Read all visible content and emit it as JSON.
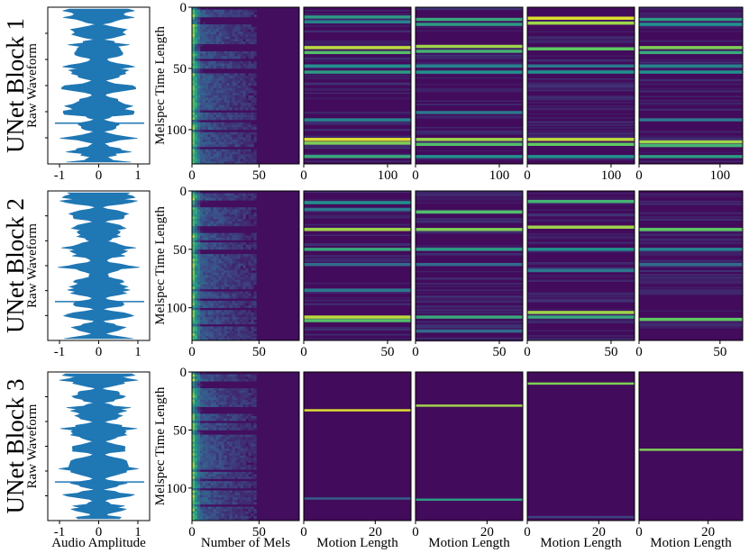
{
  "colors": {
    "waveform": "#1f77b4",
    "viridis_low": "#440154",
    "viridis_mid": "#21918c",
    "viridis_high": "#fde725",
    "axis": "#000000"
  },
  "chart_data": [
    {
      "row": 0,
      "row_label": "UNet Block 1",
      "waveform": {
        "type": "area",
        "ylabel": "Raw Waveform",
        "xlabel": "",
        "xlim": [
          -1.3,
          1.3
        ],
        "xticks": [
          "-1",
          "0",
          "1"
        ],
        "tick_values": [
          -1,
          0,
          1
        ]
      },
      "melspec": {
        "type": "heatmap",
        "ylabel": "Melspec Time Length",
        "xlabel": "",
        "xlim": [
          0,
          80
        ],
        "ylim": [
          0,
          128
        ],
        "xticks": [
          "0",
          "50"
        ],
        "yticks": [
          "0",
          "50",
          "100"
        ],
        "xtick_values": [
          0,
          50
        ],
        "ytick_values": [
          0,
          50,
          100
        ]
      },
      "attention": [
        {
          "type": "heatmap",
          "xlabel": "",
          "xlim": [
            0,
            128
          ],
          "xticks": [
            "0",
            "100"
          ],
          "xtick_values": [
            0,
            100
          ],
          "bands": [
            [
              8,
              0.55
            ],
            [
              12,
              0.45
            ],
            [
              33,
              0.9
            ],
            [
              37,
              0.7
            ],
            [
              48,
              0.5
            ],
            [
              53,
              0.55
            ],
            [
              92,
              0.45
            ],
            [
              108,
              0.95
            ],
            [
              111,
              0.8
            ],
            [
              122,
              0.6
            ]
          ]
        },
        {
          "type": "heatmap",
          "xlabel": "",
          "xlim": [
            0,
            128
          ],
          "xticks": [
            "0",
            "100"
          ],
          "xtick_values": [
            0,
            100
          ],
          "bands": [
            [
              10,
              0.6
            ],
            [
              14,
              0.55
            ],
            [
              32,
              0.85
            ],
            [
              36,
              0.65
            ],
            [
              48,
              0.45
            ],
            [
              53,
              0.5
            ],
            [
              86,
              0.4
            ],
            [
              108,
              0.85
            ],
            [
              112,
              0.7
            ],
            [
              122,
              0.5
            ]
          ]
        },
        {
          "type": "heatmap",
          "xlabel": "",
          "xlim": [
            0,
            128
          ],
          "xticks": [
            "0",
            "100"
          ],
          "xtick_values": [
            0,
            100
          ],
          "bands": [
            [
              9,
              0.95
            ],
            [
              13,
              0.85
            ],
            [
              34,
              0.75
            ],
            [
              48,
              0.4
            ],
            [
              53,
              0.5
            ],
            [
              108,
              0.9
            ],
            [
              112,
              0.75
            ],
            [
              122,
              0.5
            ]
          ]
        },
        {
          "type": "heatmap",
          "xlabel": "",
          "xlim": [
            0,
            128
          ],
          "xticks": [
            "0",
            "100"
          ],
          "xtick_values": [
            0,
            100
          ],
          "bands": [
            [
              10,
              0.55
            ],
            [
              14,
              0.5
            ],
            [
              33,
              0.8
            ],
            [
              37,
              0.6
            ],
            [
              48,
              0.45
            ],
            [
              53,
              0.5
            ],
            [
              92,
              0.4
            ],
            [
              110,
              0.85
            ],
            [
              113,
              0.65
            ],
            [
              122,
              0.55
            ]
          ]
        }
      ]
    },
    {
      "row": 1,
      "row_label": "UNet Block 2",
      "waveform": {
        "type": "area",
        "ylabel": "Raw Waveform",
        "xlabel": "",
        "xlim": [
          -1.3,
          1.3
        ],
        "xticks": [
          "-1",
          "0",
          "1"
        ],
        "tick_values": [
          -1,
          0,
          1
        ]
      },
      "melspec": {
        "type": "heatmap",
        "ylabel": "Melspec Time Length",
        "xlabel": "",
        "xlim": [
          0,
          80
        ],
        "ylim": [
          0,
          128
        ],
        "xticks": [
          "0",
          "50"
        ],
        "yticks": [
          "0",
          "50",
          "100"
        ],
        "xtick_values": [
          0,
          50
        ],
        "ytick_values": [
          0,
          50,
          100
        ]
      },
      "attention": [
        {
          "type": "heatmap",
          "xlabel": "",
          "xlim": [
            0,
            64
          ],
          "xticks": [
            "0",
            "50"
          ],
          "xtick_values": [
            0,
            50
          ],
          "bands": [
            [
              10,
              0.5
            ],
            [
              16,
              0.4
            ],
            [
              33,
              0.85
            ],
            [
              50,
              0.6
            ],
            [
              63,
              0.35
            ],
            [
              85,
              0.4
            ],
            [
              108,
              0.9
            ],
            [
              111,
              0.7
            ]
          ]
        },
        {
          "type": "heatmap",
          "xlabel": "",
          "xlim": [
            0,
            64
          ],
          "xticks": [
            "0",
            "50"
          ],
          "xtick_values": [
            0,
            50
          ],
          "bands": [
            [
              18,
              0.7
            ],
            [
              33,
              0.8
            ],
            [
              50,
              0.55
            ],
            [
              63,
              0.35
            ],
            [
              108,
              0.6
            ],
            [
              120,
              0.35
            ]
          ]
        },
        {
          "type": "heatmap",
          "xlabel": "",
          "xlim": [
            0,
            64
          ],
          "xticks": [
            "0",
            "50"
          ],
          "xtick_values": [
            0,
            50
          ],
          "bands": [
            [
              9,
              0.65
            ],
            [
              31,
              0.85
            ],
            [
              50,
              0.5
            ],
            [
              68,
              0.4
            ],
            [
              104,
              0.85
            ],
            [
              108,
              0.6
            ]
          ]
        },
        {
          "type": "heatmap",
          "xlabel": "",
          "xlim": [
            0,
            64
          ],
          "xticks": [
            "0",
            "50"
          ],
          "xtick_values": [
            0,
            50
          ],
          "bands": [
            [
              33,
              0.75
            ],
            [
              50,
              0.45
            ],
            [
              63,
              0.35
            ],
            [
              110,
              0.75
            ]
          ]
        }
      ]
    },
    {
      "row": 2,
      "row_label": "UNet Block 3",
      "waveform": {
        "type": "area",
        "ylabel": "Raw Waveform",
        "xlabel": "Audio Amplitude",
        "xlim": [
          -1.3,
          1.3
        ],
        "xticks": [
          "-1",
          "0",
          "1"
        ],
        "tick_values": [
          -1,
          0,
          1
        ]
      },
      "melspec": {
        "type": "heatmap",
        "ylabel": "Melspec Time Length",
        "xlabel": "Number of Mels",
        "xlim": [
          0,
          80
        ],
        "ylim": [
          0,
          128
        ],
        "xticks": [
          "0",
          "50"
        ],
        "yticks": [
          "0",
          "50",
          "100"
        ],
        "xtick_values": [
          0,
          50
        ],
        "ytick_values": [
          0,
          50,
          100
        ]
      },
      "attention": [
        {
          "type": "heatmap",
          "xlabel": "Motion Length",
          "xlim": [
            0,
            30
          ],
          "xticks": [
            "0",
            "20"
          ],
          "xtick_values": [
            0,
            20
          ],
          "bands": [
            [
              33,
              0.95
            ],
            [
              109,
              0.3
            ]
          ]
        },
        {
          "type": "heatmap",
          "xlabel": "Motion Length",
          "xlim": [
            0,
            30
          ],
          "xticks": [
            "0",
            "20"
          ],
          "xtick_values": [
            0,
            20
          ],
          "bands": [
            [
              29,
              0.85
            ],
            [
              110,
              0.55
            ]
          ]
        },
        {
          "type": "heatmap",
          "xlabel": "Motion Length",
          "xlim": [
            0,
            30
          ],
          "xticks": [
            "0",
            "20"
          ],
          "xtick_values": [
            0,
            20
          ],
          "bands": [
            [
              10,
              0.8
            ],
            [
              125,
              0.2
            ]
          ]
        },
        {
          "type": "heatmap",
          "xlabel": "Motion Length",
          "xlim": [
            0,
            30
          ],
          "xticks": [
            "0",
            "20"
          ],
          "xtick_values": [
            0,
            20
          ],
          "bands": [
            [
              67,
              0.8
            ]
          ]
        }
      ]
    }
  ]
}
